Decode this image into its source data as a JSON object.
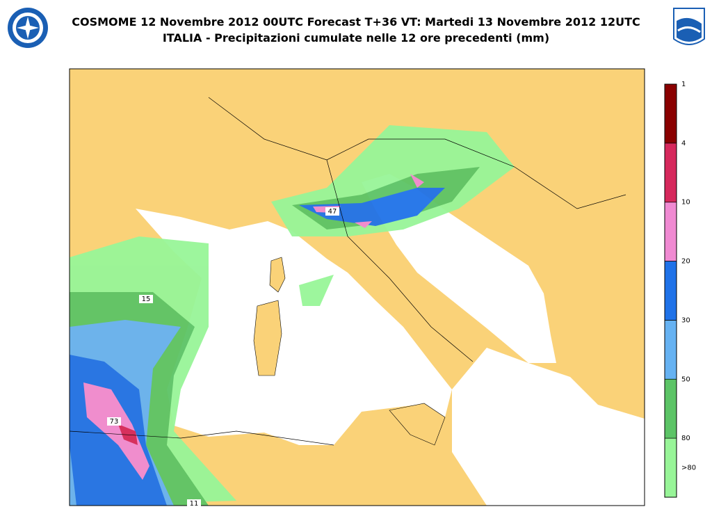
{
  "header": {
    "title_line1": "COSMOME 12 Novembre 2012 00UTC Forecast T+36 VT: Martedi 13 Novembre 2012 12UTC",
    "title_line2": "ITALIA - Precipitazioni cumulate nelle 12 ore precedenti (mm)"
  },
  "legend": {
    "ticks": [
      "1",
      "4",
      "10",
      "20",
      "30",
      "50",
      "80"
    ],
    "last_label": ">80",
    "colors": [
      "#98f598",
      "#5cc466",
      "#66b2f2",
      "#1f72e8",
      "#f08ad2",
      "#d6285c",
      "#8a0000"
    ]
  },
  "map_labels": [
    {
      "text": "47"
    },
    {
      "text": "15"
    },
    {
      "text": "73"
    },
    {
      "text": "11"
    }
  ]
}
